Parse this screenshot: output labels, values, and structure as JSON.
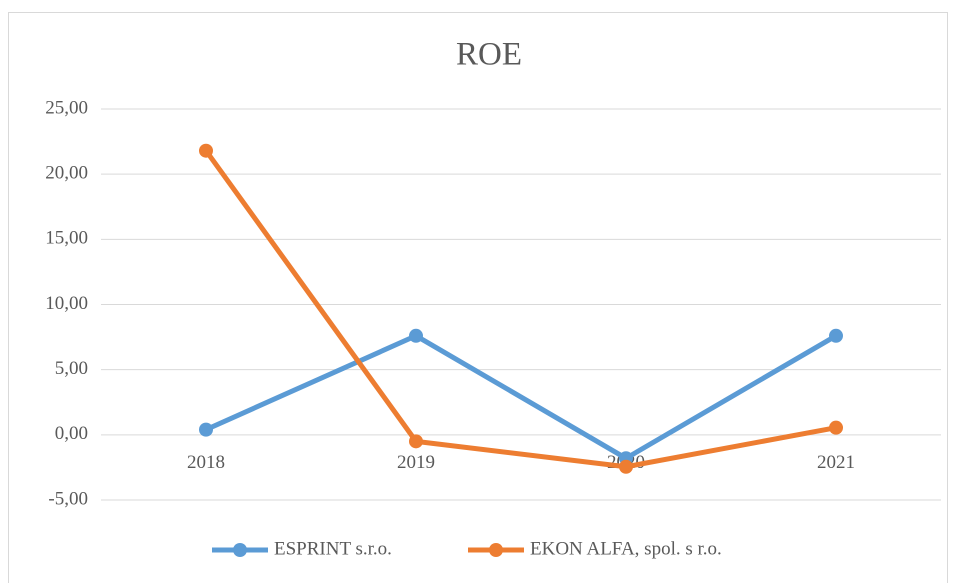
{
  "chart_data": {
    "type": "line",
    "title": "ROE",
    "categories": [
      "2018",
      "2019",
      "2020",
      "2021"
    ],
    "series": [
      {
        "name": "ESPRINT s.r.o.",
        "color": "#5b9bd5",
        "values": [
          0.4,
          7.6,
          -1.8,
          7.6
        ]
      },
      {
        "name": "EKON ALFA, spol. s r.o.",
        "color": "#ed7d31",
        "values": [
          21.8,
          -0.5,
          -2.45,
          0.55
        ]
      }
    ],
    "ylim": [
      -5,
      25
    ],
    "yticks": [
      {
        "value": -5,
        "label": "-5,00"
      },
      {
        "value": 0,
        "label": "0,00"
      },
      {
        "value": 5,
        "label": "5,00"
      },
      {
        "value": 10,
        "label": "10,00"
      },
      {
        "value": 15,
        "label": "15,00"
      },
      {
        "value": 20,
        "label": "20,00"
      },
      {
        "value": 25,
        "label": "25,00"
      }
    ],
    "grid": true,
    "legend": "bottom"
  }
}
